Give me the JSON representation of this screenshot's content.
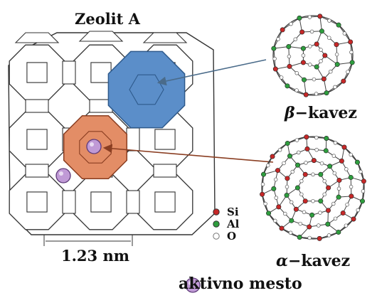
{
  "title": "Zeolit A",
  "dimension_label": "1.23 nm",
  "beta_cage": {
    "symbol": "β",
    "label": "−kavez"
  },
  "alpha_cage": {
    "symbol": "α",
    "label": "−kavez"
  },
  "legend": [
    {
      "label": "Si",
      "color": "#c62828"
    },
    {
      "label": "Al",
      "color": "#2e9d3e"
    },
    {
      "label": "O",
      "color": "#ffffff"
    }
  ],
  "active_site": {
    "label": "aktivno mesto",
    "color": "#c09ad6"
  },
  "colors": {
    "beta_fill": "#5b8ec9",
    "alpha_fill": "#e38d66",
    "frame": "#333333"
  }
}
